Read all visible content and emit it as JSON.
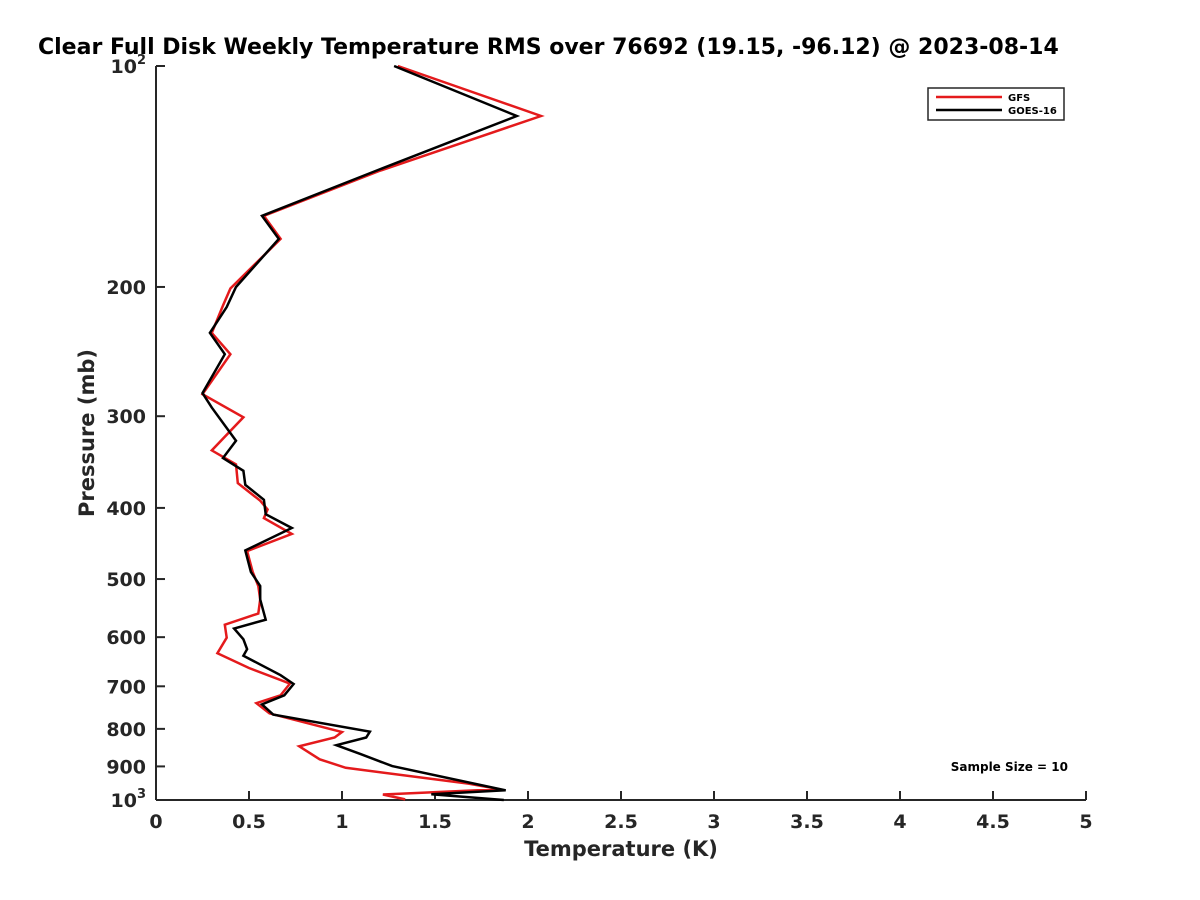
{
  "colors": {
    "gfs": "#e41a1c",
    "goes": "#000000",
    "axis": "#262626"
  },
  "chart_data": {
    "type": "line",
    "title": "Clear Full Disk Weekly Temperature RMS over 76692 (19.15, -96.12) @ 2023-08-14",
    "xlabel": "Temperature (K)",
    "ylabel": "Pressure (mb)",
    "xlim": [
      0,
      5
    ],
    "ylim": [
      100,
      1000
    ],
    "yscale": "log",
    "y_reversed": true,
    "grid": false,
    "legend_position": "top-right",
    "x_ticks": [
      {
        "v": 0,
        "label": "0"
      },
      {
        "v": 0.5,
        "label": "0.5"
      },
      {
        "v": 1,
        "label": "1"
      },
      {
        "v": 1.5,
        "label": "1.5"
      },
      {
        "v": 2,
        "label": "2"
      },
      {
        "v": 2.5,
        "label": "2.5"
      },
      {
        "v": 3,
        "label": "3"
      },
      {
        "v": 3.5,
        "label": "3.5"
      },
      {
        "v": 4,
        "label": "4"
      },
      {
        "v": 4.5,
        "label": "4.5"
      },
      {
        "v": 5,
        "label": "5"
      }
    ],
    "y_ticks": [
      {
        "v": 100,
        "label": "10",
        "sup": "2"
      },
      {
        "v": 200,
        "label": "200"
      },
      {
        "v": 300,
        "label": "300"
      },
      {
        "v": 400,
        "label": "400"
      },
      {
        "v": 500,
        "label": "500"
      },
      {
        "v": 600,
        "label": "600"
      },
      {
        "v": 700,
        "label": "700"
      },
      {
        "v": 800,
        "label": "800"
      },
      {
        "v": 900,
        "label": "900"
      },
      {
        "v": 1000,
        "label": "10",
        "sup": "3"
      }
    ],
    "series": [
      {
        "name": "GFS",
        "color": "#e41a1c",
        "points": [
          [
            1.3,
            100
          ],
          [
            2.07,
            117
          ],
          [
            1.2,
            139
          ],
          [
            0.58,
            160
          ],
          [
            0.67,
            172
          ],
          [
            0.4,
            201
          ],
          [
            0.36,
            212
          ],
          [
            0.3,
            231
          ],
          [
            0.4,
            247
          ],
          [
            0.25,
            280
          ],
          [
            0.47,
            301
          ],
          [
            0.3,
            334
          ],
          [
            0.43,
            349
          ],
          [
            0.44,
            370
          ],
          [
            0.56,
            391
          ],
          [
            0.6,
            402
          ],
          [
            0.58,
            413
          ],
          [
            0.73,
            434
          ],
          [
            0.49,
            458
          ],
          [
            0.52,
            489
          ],
          [
            0.55,
            511
          ],
          [
            0.56,
            533
          ],
          [
            0.55,
            557
          ],
          [
            0.37,
            577
          ],
          [
            0.38,
            601
          ],
          [
            0.33,
            631
          ],
          [
            0.5,
            661
          ],
          [
            0.72,
            694
          ],
          [
            0.67,
            720
          ],
          [
            0.54,
            738
          ],
          [
            0.61,
            762
          ],
          [
            1.0,
            808
          ],
          [
            0.96,
            822
          ],
          [
            0.77,
            845
          ],
          [
            0.88,
            880
          ],
          [
            1.02,
            904
          ],
          [
            1.68,
            950
          ],
          [
            1.85,
            967
          ],
          [
            1.22,
            983
          ],
          [
            1.34,
            998
          ]
        ]
      },
      {
        "name": "GOES-16",
        "color": "#000000",
        "points": [
          [
            1.28,
            100
          ],
          [
            1.94,
            117
          ],
          [
            1.18,
            139
          ],
          [
            0.57,
            160
          ],
          [
            0.66,
            172
          ],
          [
            0.43,
            200
          ],
          [
            0.38,
            213
          ],
          [
            0.29,
            231
          ],
          [
            0.37,
            247
          ],
          [
            0.25,
            279
          ],
          [
            0.3,
            292
          ],
          [
            0.43,
            324
          ],
          [
            0.36,
            342
          ],
          [
            0.47,
            356
          ],
          [
            0.48,
            372
          ],
          [
            0.58,
            390
          ],
          [
            0.59,
            408
          ],
          [
            0.73,
            426
          ],
          [
            0.48,
            457
          ],
          [
            0.51,
            489
          ],
          [
            0.56,
            511
          ],
          [
            0.56,
            533
          ],
          [
            0.59,
            568
          ],
          [
            0.42,
            584
          ],
          [
            0.47,
            604
          ],
          [
            0.49,
            623
          ],
          [
            0.47,
            636
          ],
          [
            0.67,
            676
          ],
          [
            0.74,
            695
          ],
          [
            0.69,
            720
          ],
          [
            0.57,
            741
          ],
          [
            0.63,
            765
          ],
          [
            1.15,
            807
          ],
          [
            1.13,
            822
          ],
          [
            0.97,
            842
          ],
          [
            1.1,
            866
          ],
          [
            1.27,
            899
          ],
          [
            1.77,
            957
          ],
          [
            1.88,
            970
          ],
          [
            1.48,
            982
          ],
          [
            1.87,
            1000
          ]
        ]
      }
    ],
    "annotation": "Sample Size = 10"
  }
}
